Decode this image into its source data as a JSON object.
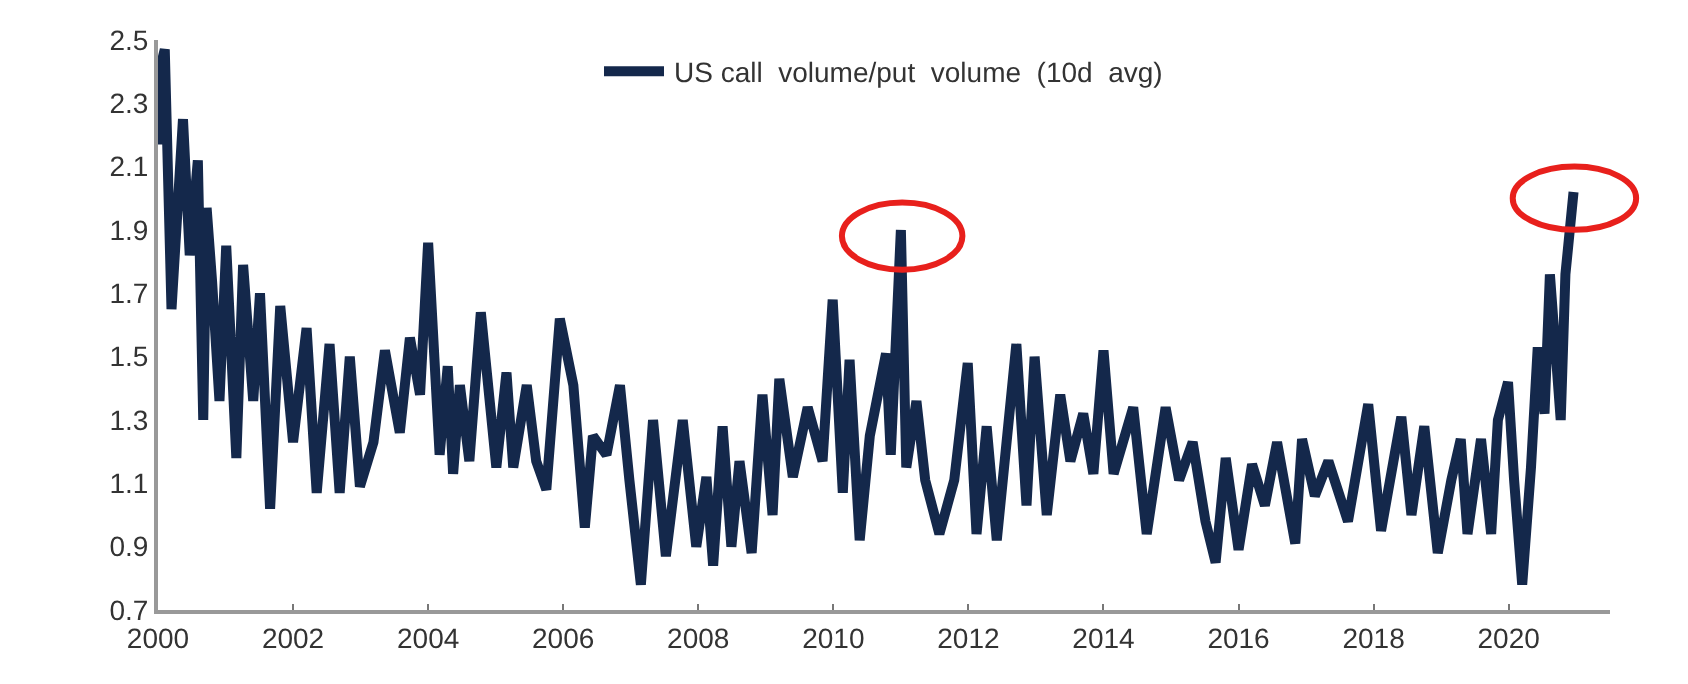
{
  "chart_data": {
    "type": "line",
    "xlim": [
      2000,
      2021.5
    ],
    "ylim": [
      0.7,
      2.5
    ],
    "xticks": [
      2000,
      2002,
      2004,
      2006,
      2008,
      2010,
      2012,
      2014,
      2016,
      2018,
      2020
    ],
    "yticks": [
      {
        "value": 0.7,
        "label": "0.7"
      },
      {
        "value": 0.9,
        "label": "0.9"
      },
      {
        "value": 1.1,
        "label": "1.1"
      },
      {
        "value": 1.3,
        "label": "1.3"
      },
      {
        "value": 1.5,
        "label": "1.5"
      },
      {
        "value": 1.7,
        "label": "1.7"
      },
      {
        "value": 1.9,
        "label": "1.9"
      },
      {
        "value": 2.1,
        "label": "2.1"
      },
      {
        "value": 2.3,
        "label": "2.3"
      },
      {
        "value": 2.5,
        "label": "2.5"
      }
    ],
    "grid": false,
    "legend": "top",
    "marker": "none",
    "line_style": "solid",
    "series": [
      {
        "name": "US call  volume/put  volume  (10d  avg)",
        "color": "#14284b",
        "x": [
          2000.0,
          2000.02,
          2000.1,
          2000.2,
          2000.37,
          2000.47,
          2000.59,
          2000.67,
          2000.72,
          2000.8,
          2000.91,
          2001.01,
          2001.16,
          2001.26,
          2001.41,
          2001.51,
          2001.66,
          2001.81,
          2002.0,
          2002.2,
          2002.35,
          2002.54,
          2002.69,
          2002.84,
          2002.99,
          2003.19,
          2003.36,
          2003.58,
          2003.73,
          2003.88,
          2004.0,
          2004.17,
          2004.29,
          2004.37,
          2004.47,
          2004.61,
          2004.78,
          2005.01,
          2005.16,
          2005.26,
          2005.46,
          2005.6,
          2005.75,
          2005.95,
          2006.15,
          2006.32,
          2006.44,
          2006.64,
          2006.84,
          2006.98,
          2007.15,
          2007.33,
          2007.52,
          2007.77,
          2007.97,
          2008.12,
          2008.22,
          2008.36,
          2008.49,
          2008.61,
          2008.79,
          2008.95,
          2009.1,
          2009.2,
          2009.4,
          2009.62,
          2009.84,
          2009.99,
          2010.14,
          2010.24,
          2010.39,
          2010.54,
          2010.78,
          2010.85,
          2011.0,
          2011.08,
          2011.23,
          2011.36,
          2011.57,
          2011.79,
          2011.99,
          2012.12,
          2012.27,
          2012.42,
          2012.71,
          2012.86,
          2012.98,
          2013.16,
          2013.36,
          2013.51,
          2013.7,
          2013.85,
          2014.0,
          2014.15,
          2014.44,
          2014.64,
          2014.92,
          2015.12,
          2015.32,
          2015.51,
          2015.66,
          2015.81,
          2016.0,
          2016.2,
          2016.39,
          2016.57,
          2016.84,
          2016.94,
          2017.13,
          2017.33,
          2017.62,
          2017.92,
          2018.11,
          2018.41,
          2018.56,
          2018.75,
          2018.95,
          2019.15,
          2019.29,
          2019.39,
          2019.59,
          2019.74,
          2019.84,
          2019.99,
          2020.08,
          2020.2,
          2020.33,
          2020.43,
          2020.53,
          2020.61,
          2020.77,
          2020.84,
          2020.96
        ],
        "values": [
          2.17,
          2.4,
          2.47,
          1.65,
          2.25,
          1.82,
          2.12,
          1.3,
          1.97,
          1.74,
          1.36,
          1.85,
          1.18,
          1.79,
          1.36,
          1.7,
          1.02,
          1.66,
          1.23,
          1.59,
          1.07,
          1.54,
          1.07,
          1.5,
          1.09,
          1.23,
          1.52,
          1.26,
          1.56,
          1.38,
          1.86,
          1.19,
          1.47,
          1.13,
          1.41,
          1.17,
          1.64,
          1.15,
          1.45,
          1.15,
          1.41,
          1.17,
          1.08,
          1.62,
          1.41,
          0.96,
          1.25,
          1.19,
          1.41,
          1.11,
          0.78,
          1.3,
          0.87,
          1.3,
          0.9,
          1.12,
          0.84,
          1.28,
          0.9,
          1.17,
          0.88,
          1.38,
          1.0,
          1.43,
          1.12,
          1.34,
          1.17,
          1.68,
          1.07,
          1.49,
          0.92,
          1.25,
          1.51,
          1.19,
          1.9,
          1.15,
          1.36,
          1.11,
          0.94,
          1.11,
          1.48,
          0.94,
          1.28,
          0.92,
          1.54,
          1.03,
          1.5,
          1.0,
          1.38,
          1.17,
          1.32,
          1.13,
          1.52,
          1.13,
          1.34,
          0.94,
          1.34,
          1.11,
          1.23,
          0.98,
          0.85,
          1.18,
          0.89,
          1.16,
          1.03,
          1.23,
          0.91,
          1.24,
          1.06,
          1.17,
          0.98,
          1.35,
          0.95,
          1.31,
          1.0,
          1.28,
          0.88,
          1.11,
          1.24,
          0.94,
          1.24,
          0.94,
          1.3,
          1.42,
          1.11,
          0.78,
          1.15,
          1.53,
          1.32,
          1.76,
          1.3,
          1.76,
          2.02
        ]
      }
    ]
  }
}
